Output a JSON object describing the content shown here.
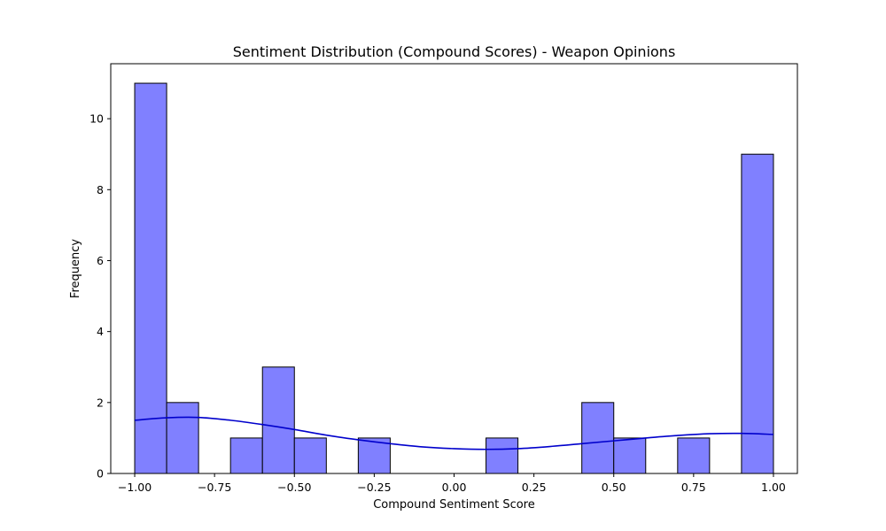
{
  "chart_data": {
    "type": "bar",
    "title": "Sentiment Distribution (Compound Scores) - Weapon Opinions",
    "xlabel": "Compound Sentiment Score",
    "ylabel": "Frequency",
    "xlim": [
      -1.075,
      1.075
    ],
    "ylim": [
      0,
      11.55
    ],
    "x_ticks": [
      -1.0,
      -0.75,
      -0.5,
      -0.25,
      0.0,
      0.25,
      0.5,
      0.75,
      1.0
    ],
    "x_tick_labels": [
      "−1.00",
      "−0.75",
      "−0.50",
      "−0.25",
      "0.00",
      "0.25",
      "0.50",
      "0.75",
      "1.00"
    ],
    "y_ticks": [
      0,
      2,
      4,
      6,
      8,
      10
    ],
    "y_tick_labels": [
      "0",
      "2",
      "4",
      "6",
      "8",
      "10"
    ],
    "bin_edges": [
      -1.0,
      -0.9,
      -0.8,
      -0.7,
      -0.6,
      -0.5,
      -0.4,
      -0.3,
      -0.2,
      -0.1,
      0.0,
      0.1,
      0.2,
      0.3,
      0.4,
      0.5,
      0.6,
      0.7,
      0.8,
      0.9,
      1.0
    ],
    "counts": [
      11,
      2,
      0,
      1,
      3,
      1,
      0,
      1,
      0,
      0,
      0,
      1,
      0,
      0,
      2,
      1,
      0,
      1,
      0,
      9
    ],
    "kde": {
      "x": [
        -1.0,
        -0.9,
        -0.8,
        -0.7,
        -0.6,
        -0.5,
        -0.4,
        -0.3,
        -0.2,
        -0.1,
        0.0,
        0.1,
        0.2,
        0.3,
        0.4,
        0.5,
        0.6,
        0.7,
        0.8,
        0.9,
        1.0
      ],
      "y": [
        1.5,
        1.57,
        1.58,
        1.5,
        1.38,
        1.24,
        1.08,
        0.95,
        0.84,
        0.75,
        0.7,
        0.68,
        0.7,
        0.76,
        0.84,
        0.92,
        1.0,
        1.07,
        1.12,
        1.13,
        1.1
      ]
    },
    "grid": false,
    "legend": "none",
    "colors": {
      "bar_fill": "#8080ff",
      "bar_edge": "#000000",
      "kde_line": "#0000cc"
    }
  }
}
